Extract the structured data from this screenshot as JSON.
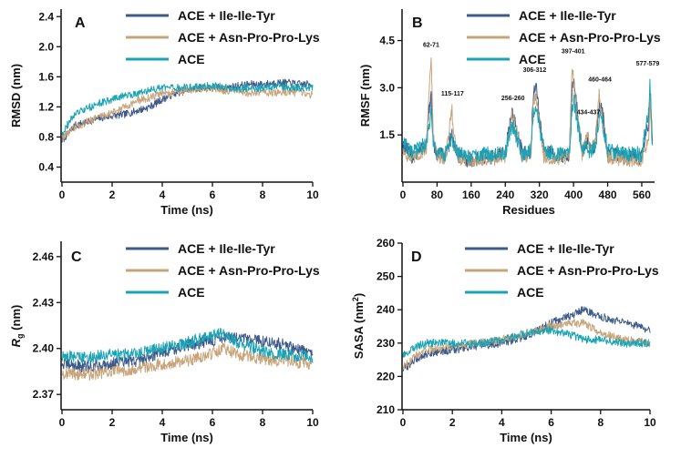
{
  "colors": {
    "ile": "#3e5a8a",
    "asn": "#c8a47a",
    "ace": "#1aa3b5",
    "axis": "#111111"
  },
  "chart_data": [
    {
      "id": "A",
      "type": "line",
      "panel_label": "A",
      "xlabel": "Time (ns)",
      "ylabel": "RMSD (nm)",
      "xlim": [
        0,
        10
      ],
      "ylim": [
        0.2,
        2.5
      ],
      "xticks": [
        0,
        2,
        4,
        6,
        8,
        10
      ],
      "yticks": [
        0.4,
        0.8,
        1.2,
        1.6,
        2.0,
        2.4
      ],
      "ytick_labels": [
        "0.4",
        "0.8",
        "1.2",
        "1.6",
        "2.0",
        "2.4"
      ],
      "legend": [
        "ACE + Ile-Ile-Tyr",
        "ACE + Asn-Pro-Pro-Lys",
        "ACE"
      ],
      "series": [
        {
          "name": "ACE + Ile-Ile-Tyr",
          "color": "#3e5a8a",
          "x": [
            0,
            0.5,
            1,
            1.5,
            2,
            2.5,
            3,
            3.5,
            4,
            4.5,
            5,
            5.5,
            6,
            6.5,
            7,
            7.5,
            8,
            8.5,
            9,
            9.5,
            10
          ],
          "y": [
            0.75,
            0.95,
            1.0,
            1.05,
            1.08,
            1.1,
            1.15,
            1.2,
            1.3,
            1.38,
            1.42,
            1.45,
            1.46,
            1.45,
            1.48,
            1.5,
            1.5,
            1.52,
            1.52,
            1.5,
            1.5
          ],
          "noise": 0.05
        },
        {
          "name": "ACE + Asn-Pro-Pro-Lys",
          "color": "#c8a47a",
          "x": [
            0,
            0.5,
            1,
            1.5,
            2,
            2.5,
            3,
            3.5,
            4,
            4.5,
            5,
            5.5,
            6,
            6.5,
            7,
            7.5,
            8,
            8.5,
            9,
            9.5,
            10
          ],
          "y": [
            0.8,
            0.92,
            1.0,
            1.08,
            1.12,
            1.2,
            1.28,
            1.32,
            1.38,
            1.4,
            1.42,
            1.43,
            1.44,
            1.42,
            1.4,
            1.38,
            1.4,
            1.38,
            1.4,
            1.38,
            1.36
          ],
          "noise": 0.05
        },
        {
          "name": "ACE",
          "color": "#1aa3b5",
          "x": [
            0,
            0.5,
            1,
            1.5,
            2,
            2.5,
            3,
            3.5,
            4,
            4.5,
            5,
            5.5,
            6,
            6.5,
            7,
            7.5,
            8,
            8.5,
            9,
            9.5,
            10
          ],
          "y": [
            0.85,
            1.1,
            1.18,
            1.25,
            1.3,
            1.35,
            1.38,
            1.42,
            1.45,
            1.45,
            1.46,
            1.47,
            1.48,
            1.46,
            1.44,
            1.45,
            1.45,
            1.48,
            1.46,
            1.45,
            1.46
          ],
          "noise": 0.05
        }
      ],
      "annotations": []
    },
    {
      "id": "B",
      "type": "line",
      "panel_label": "B",
      "xlabel": "Residues",
      "ylabel": "RMSF (nm)",
      "xlim": [
        0,
        590
      ],
      "ylim": [
        0,
        5.5
      ],
      "xticks": [
        0,
        80,
        160,
        240,
        320,
        400,
        480,
        560
      ],
      "yticks": [
        1.5,
        3.0,
        4.5
      ],
      "ytick_labels": [
        "1.5",
        "3.0",
        "4.5"
      ],
      "legend": [
        "ACE + Ile-Ile-Tyr",
        "ACE + Asn-Pro-Pro-Lys",
        "ACE"
      ],
      "series": [
        {
          "name": "ACE + Ile-Ile-Tyr",
          "color": "#3e5a8a",
          "x": [
            0,
            20,
            40,
            55,
            62,
            66,
            71,
            80,
            100,
            115,
            117,
            130,
            160,
            200,
            240,
            256,
            260,
            280,
            300,
            306,
            312,
            330,
            360,
            390,
            397,
            401,
            420,
            434,
            437,
            450,
            460,
            464,
            480,
            520,
            560,
            577,
            579,
            585
          ],
          "y": [
            1.2,
            0.8,
            1.0,
            1.2,
            2.4,
            2.7,
            1.3,
            0.9,
            0.8,
            1.6,
            1.3,
            0.8,
            0.7,
            0.8,
            0.9,
            2.3,
            2.0,
            0.9,
            1.0,
            2.9,
            3.0,
            1.0,
            0.8,
            0.9,
            3.0,
            3.2,
            1.0,
            1.3,
            1.0,
            1.2,
            2.4,
            2.6,
            0.9,
            0.8,
            0.8,
            2.0,
            3.1,
            1.2
          ],
          "noise": 0.25
        },
        {
          "name": "ACE + Asn-Pro-Pro-Lys",
          "color": "#c8a47a",
          "x": [
            0,
            20,
            40,
            55,
            62,
            66,
            71,
            80,
            100,
            115,
            117,
            130,
            160,
            200,
            240,
            256,
            260,
            280,
            300,
            306,
            312,
            330,
            360,
            390,
            397,
            401,
            420,
            434,
            437,
            450,
            460,
            464,
            480,
            520,
            560,
            577,
            579,
            585
          ],
          "y": [
            1.0,
            0.7,
            0.9,
            1.1,
            3.2,
            4.0,
            1.4,
            0.8,
            0.8,
            2.4,
            1.7,
            0.7,
            0.7,
            0.7,
            0.8,
            2.2,
            2.0,
            0.8,
            0.9,
            2.6,
            2.8,
            0.8,
            0.7,
            0.8,
            3.7,
            3.0,
            0.9,
            1.7,
            1.1,
            1.2,
            2.8,
            2.2,
            0.8,
            0.7,
            0.7,
            1.4,
            2.6,
            1.0
          ],
          "noise": 0.22
        },
        {
          "name": "ACE",
          "color": "#1aa3b5",
          "x": [
            0,
            20,
            40,
            55,
            62,
            66,
            71,
            80,
            100,
            115,
            117,
            130,
            160,
            200,
            240,
            256,
            260,
            280,
            300,
            306,
            312,
            330,
            360,
            390,
            397,
            401,
            420,
            434,
            437,
            450,
            460,
            464,
            480,
            520,
            560,
            577,
            579,
            585
          ],
          "y": [
            1.3,
            0.9,
            1.1,
            1.2,
            1.9,
            2.2,
            1.2,
            0.9,
            0.9,
            1.4,
            1.2,
            0.9,
            0.8,
            0.9,
            0.9,
            1.8,
            1.7,
            0.9,
            1.0,
            2.2,
            2.4,
            1.0,
            0.9,
            0.9,
            2.4,
            2.6,
            1.0,
            1.1,
            1.0,
            1.1,
            2.0,
            2.2,
            1.0,
            0.9,
            0.9,
            2.4,
            3.2,
            1.3
          ],
          "noise": 0.25
        }
      ],
      "annotations": [
        {
          "text": "62-71",
          "x": 66,
          "y": 4.3
        },
        {
          "text": "115-117",
          "x": 116,
          "y": 2.75
        },
        {
          "text": "256-260",
          "x": 258,
          "y": 2.6
        },
        {
          "text": "306-312",
          "x": 309,
          "y": 3.5
        },
        {
          "text": "397-401",
          "x": 399,
          "y": 4.1
        },
        {
          "text": "434-437",
          "x": 435,
          "y": 2.15
        },
        {
          "text": "460-464",
          "x": 462,
          "y": 3.2
        },
        {
          "text": "577-579",
          "x": 574,
          "y": 3.7
        }
      ]
    },
    {
      "id": "C",
      "type": "line",
      "panel_label": "C",
      "xlabel": "Time (ns)",
      "ylabel_main": "R",
      "ylabel_sub": "g",
      "ylabel_unit": " (nm)",
      "xlim": [
        0,
        10
      ],
      "ylim": [
        2.36,
        2.47
      ],
      "xticks": [
        0,
        2,
        4,
        6,
        8,
        10
      ],
      "yticks": [
        2.37,
        2.4,
        2.43,
        2.46
      ],
      "ytick_labels": [
        "2.37",
        "2.40",
        "2.43",
        "2.46"
      ],
      "legend": [
        "ACE + Ile-Ile-Tyr",
        "ACE + Asn-Pro-Pro-Lys",
        "ACE"
      ],
      "series": [
        {
          "name": "ACE + Ile-Ile-Tyr",
          "color": "#3e5a8a",
          "x": [
            0,
            1,
            2,
            3,
            4,
            5,
            6,
            6.5,
            7,
            8,
            9,
            10
          ],
          "y": [
            2.39,
            2.388,
            2.39,
            2.392,
            2.398,
            2.402,
            2.405,
            2.408,
            2.406,
            2.405,
            2.402,
            2.396
          ],
          "noise": 0.004
        },
        {
          "name": "ACE + Asn-Pro-Pro-Lys",
          "color": "#c8a47a",
          "x": [
            0,
            1,
            2,
            3,
            4,
            5,
            6,
            6.5,
            7,
            8,
            9,
            10
          ],
          "y": [
            2.384,
            2.383,
            2.385,
            2.387,
            2.39,
            2.392,
            2.397,
            2.4,
            2.396,
            2.393,
            2.392,
            2.39
          ],
          "noise": 0.004
        },
        {
          "name": "ACE",
          "color": "#1aa3b5",
          "x": [
            0,
            1,
            2,
            3,
            4,
            5,
            6,
            6.5,
            7,
            8,
            9,
            10
          ],
          "y": [
            2.395,
            2.394,
            2.396,
            2.397,
            2.4,
            2.404,
            2.408,
            2.41,
            2.404,
            2.398,
            2.396,
            2.394
          ],
          "noise": 0.004
        }
      ],
      "annotations": []
    },
    {
      "id": "D",
      "type": "line",
      "panel_label": "D",
      "xlabel": "Time (ns)",
      "ylabel_main": "SASA (nm",
      "ylabel_sup": "2",
      "ylabel_tail": ")",
      "xlim": [
        0,
        10
      ],
      "ylim": [
        210,
        260
      ],
      "xticks": [
        0,
        2,
        4,
        6,
        8,
        10
      ],
      "yticks": [
        210,
        220,
        230,
        240,
        250,
        260
      ],
      "ytick_labels": [
        "210",
        "220",
        "230",
        "240",
        "250",
        "260"
      ],
      "legend": [
        "ACE + Ile-Ile-Tyr",
        "ACE + Asn-Pro-Pro-Lys",
        "ACE"
      ],
      "series": [
        {
          "name": "ACE + Ile-Ile-Tyr",
          "color": "#3e5a8a",
          "x": [
            0,
            0.5,
            1,
            2,
            3,
            4,
            5,
            6,
            7,
            7.3,
            8,
            9,
            10
          ],
          "y": [
            222,
            225,
            227,
            228,
            229,
            230,
            232,
            236,
            239,
            240,
            238,
            236,
            234
          ],
          "noise": 1.2
        },
        {
          "name": "ACE + Asn-Pro-Pro-Lys",
          "color": "#c8a47a",
          "x": [
            0,
            0.5,
            1,
            2,
            3,
            4,
            5,
            6,
            7,
            7.3,
            8,
            9,
            10
          ],
          "y": [
            223,
            226,
            228,
            229,
            230,
            231,
            233,
            235,
            236,
            236,
            233,
            231,
            230
          ],
          "noise": 1.2
        },
        {
          "name": "ACE",
          "color": "#1aa3b5",
          "x": [
            0,
            0.5,
            1,
            2,
            3,
            4,
            5,
            6,
            7,
            7.3,
            8,
            9,
            10
          ],
          "y": [
            226,
            229,
            230,
            230,
            230,
            231,
            233,
            234,
            232,
            231,
            231,
            230,
            230
          ],
          "noise": 1.2
        }
      ],
      "annotations": []
    }
  ]
}
